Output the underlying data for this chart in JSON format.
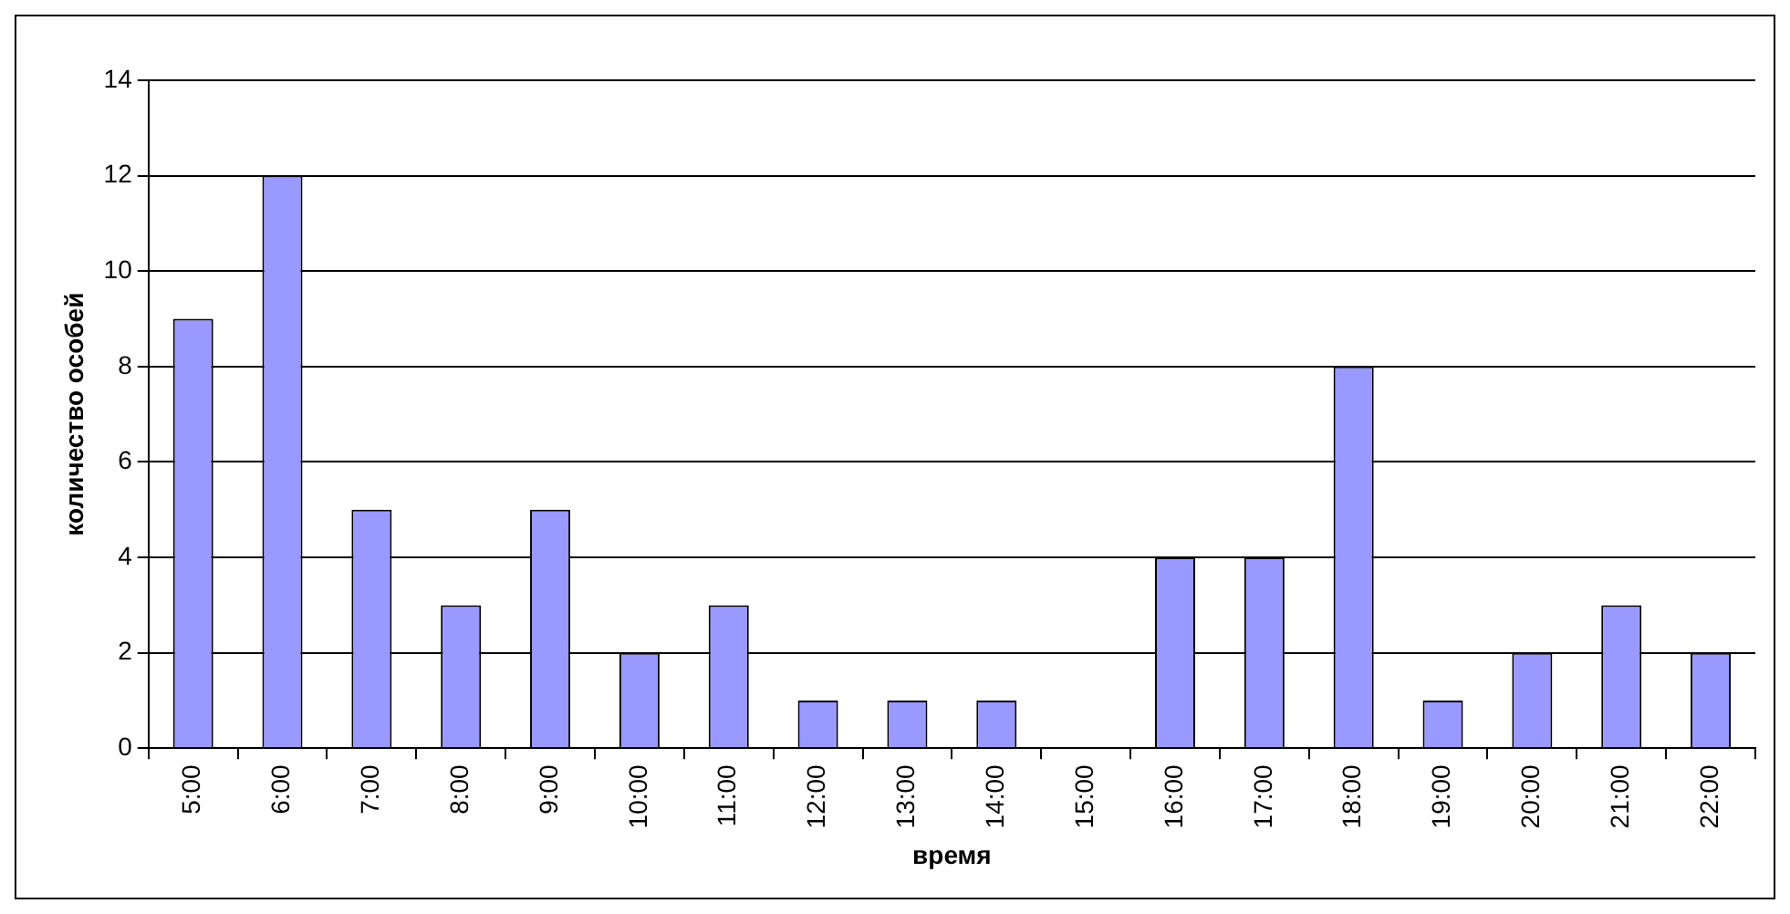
{
  "chart_data": {
    "type": "bar",
    "xlabel": "время",
    "ylabel": "количество особей",
    "categories": [
      "5:00",
      "6:00",
      "7:00",
      "8:00",
      "9:00",
      "10:00",
      "11:00",
      "12:00",
      "13:00",
      "14:00",
      "15:00",
      "16:00",
      "17:00",
      "18:00",
      "19:00",
      "20:00",
      "21:00",
      "22:00"
    ],
    "values": [
      9,
      12,
      5,
      3,
      5,
      2,
      3,
      1,
      1,
      1,
      0,
      4,
      4,
      8,
      1,
      2,
      3,
      2
    ],
    "color": "#9999ff",
    "ylim": [
      0,
      14
    ],
    "yticks": [
      0,
      2,
      4,
      6,
      8,
      10,
      12,
      14
    ],
    "grid": "y",
    "legend": false
  }
}
